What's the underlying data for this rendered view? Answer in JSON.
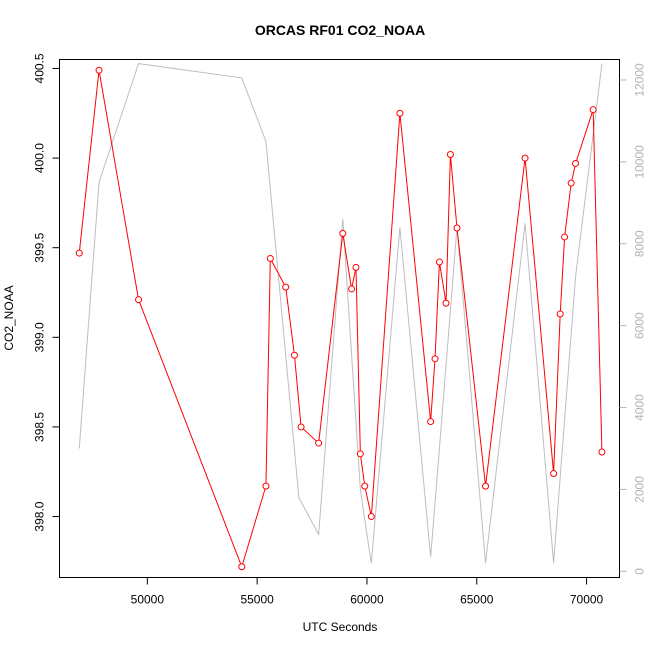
{
  "chart_data": {
    "type": "line",
    "title": "ORCAS RF01 CO2_NOAA",
    "xlabel": "UTC Seconds",
    "ylabel": "CO2_NOAA",
    "xlim": [
      46000,
      71500
    ],
    "ylim": [
      397.66,
      400.55
    ],
    "y2lim": [
      -150,
      12500
    ],
    "x_ticks": [
      50000,
      55000,
      60000,
      65000,
      70000
    ],
    "y_ticks": [
      398.0,
      398.5,
      399.0,
      399.5,
      400.0,
      400.5
    ],
    "y_tick_labels": [
      "398.0",
      "398.5",
      "399.0",
      "399.5",
      "400.0",
      "400.5"
    ],
    "y2_ticks": [
      0,
      2000,
      4000,
      6000,
      8000,
      10000,
      12000
    ],
    "grid": false,
    "series": [
      {
        "color": "#ff0000",
        "axis": "left",
        "marker": "open-circle",
        "x": [
          46900,
          47800,
          49600,
          54300,
          55400,
          55600,
          56300,
          56700,
          57000,
          57800,
          58900,
          59300,
          59500,
          59700,
          59900,
          60200,
          61500,
          62900,
          63100,
          63300,
          63600,
          63800,
          64100,
          65400,
          67200,
          68500,
          68800,
          69000,
          69300,
          69500,
          70300,
          70700
        ],
        "values": [
          399.47,
          400.49,
          399.21,
          397.72,
          398.17,
          399.44,
          399.28,
          398.9,
          398.5,
          398.41,
          399.58,
          399.27,
          399.39,
          398.35,
          398.17,
          398.0,
          400.25,
          398.53,
          398.88,
          399.42,
          399.19,
          400.02,
          399.61,
          398.17,
          400.0,
          398.24,
          399.13,
          399.56,
          399.86,
          399.97,
          400.27,
          398.36
        ]
      },
      {
        "color": "#bebebe",
        "axis": "right",
        "x": [
          46900,
          47800,
          49600,
          54300,
          55400,
          56900,
          57800,
          58900,
          59700,
          60000,
          60200,
          61500,
          62900,
          63300,
          64100,
          65400,
          67200,
          68500,
          69500,
          70700
        ],
        "values": [
          3000,
          9500,
          12400,
          12050,
          10500,
          1800,
          900,
          8600,
          2000,
          900,
          200,
          8400,
          350,
          3000,
          8400,
          200,
          8500,
          200,
          7200,
          12400
        ]
      }
    ]
  }
}
